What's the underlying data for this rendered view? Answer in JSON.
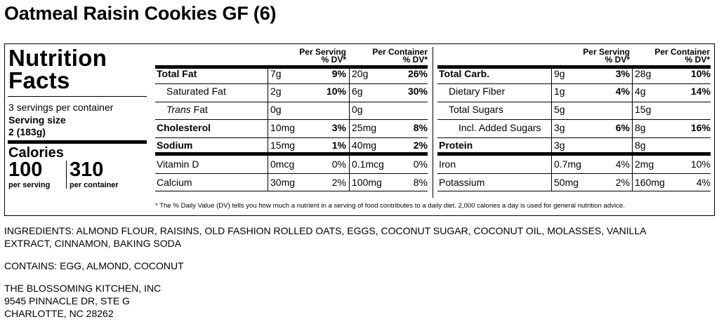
{
  "title": "Oatmeal Raisin Cookies GF (6)",
  "label": {
    "heading": "Nutrition Facts",
    "servings_per_container": "3 servings per container",
    "serving_size_label": "Serving size",
    "serving_size_value": "2 (183g)",
    "calories_label": "Calories",
    "calories_per_serving": "100",
    "calories_per_container": "310",
    "per_serving_label": "per serving",
    "per_container_label": "per container",
    "col_per_serving": "Per Serving",
    "col_per_container": "Per Container",
    "col_dv": "% DV*",
    "left_rows": [
      {
        "name": "Total Fat",
        "bold": true,
        "indent": 0,
        "serving": "7g",
        "serving_dv": "9%",
        "container": "20g",
        "container_dv": "26%",
        "dv_bold": true
      },
      {
        "name": "Saturated Fat",
        "bold": false,
        "indent": 1,
        "serving": "2g",
        "serving_dv": "10%",
        "container": "6g",
        "container_dv": "30%",
        "dv_bold": true
      },
      {
        "name": "Trans",
        "suffix": " Fat",
        "italic": true,
        "bold": false,
        "indent": 1,
        "serving": "0g",
        "serving_dv": "",
        "container": "0g",
        "container_dv": "",
        "dv_bold": true
      },
      {
        "name": "Cholesterol",
        "bold": true,
        "indent": 0,
        "serving": "10mg",
        "serving_dv": "3%",
        "container": "25mg",
        "container_dv": "8%",
        "dv_bold": true
      },
      {
        "name": "Sodium",
        "bold": true,
        "indent": 0,
        "serving": "15mg",
        "serving_dv": "1%",
        "container": "40mg",
        "container_dv": "2%",
        "dv_bold": true
      },
      {
        "name": "Vitamin D",
        "bold": false,
        "indent": 0,
        "serving": "0mcg",
        "serving_dv": "0%",
        "container": "0.1mcg",
        "container_dv": "0%",
        "dv_bold": false
      },
      {
        "name": "Calcium",
        "bold": false,
        "indent": 0,
        "serving": "30mg",
        "serving_dv": "2%",
        "container": "100mg",
        "container_dv": "8%",
        "dv_bold": false
      }
    ],
    "right_rows": [
      {
        "name": "Total Carb.",
        "bold": true,
        "indent": 0,
        "serving": "9g",
        "serving_dv": "3%",
        "container": "28g",
        "container_dv": "10%",
        "dv_bold": true
      },
      {
        "name": "Dietary Fiber",
        "bold": false,
        "indent": 1,
        "serving": "1g",
        "serving_dv": "4%",
        "container": "4g",
        "container_dv": "14%",
        "dv_bold": true
      },
      {
        "name": "Total Sugars",
        "bold": false,
        "indent": 1,
        "serving": "5g",
        "serving_dv": "",
        "container": "15g",
        "container_dv": "",
        "dv_bold": true
      },
      {
        "name": "Incl. Added Sugars",
        "bold": false,
        "indent": 2,
        "serving": "3g",
        "serving_dv": "6%",
        "container": "8g",
        "container_dv": "16%",
        "dv_bold": true
      },
      {
        "name": "Protein",
        "bold": true,
        "indent": 0,
        "serving": "3g",
        "serving_dv": "",
        "container": "8g",
        "container_dv": "",
        "dv_bold": true
      },
      {
        "name": "Iron",
        "bold": false,
        "indent": 0,
        "serving": "0.7mg",
        "serving_dv": "4%",
        "container": "2mg",
        "container_dv": "10%",
        "dv_bold": false
      },
      {
        "name": "Potassium",
        "bold": false,
        "indent": 0,
        "serving": "50mg",
        "serving_dv": "2%",
        "container": "160mg",
        "container_dv": "4%",
        "dv_bold": false
      }
    ],
    "footnote": "* The % Daily Value (DV) tells you how much a nutrient in a serving of food contributes to a daily diet. 2,000 calories a day is used for general nutrition advice."
  },
  "ingredients": {
    "line1": "INGREDIENTS: ALMOND FLOUR, RAISINS, OLD FASHION ROLLED OATS, EGGS, COCONUT SUGAR, COCONUT OIL, MOLASSES, VANILLA",
    "line2": "EXTRACT, CINNAMON, BAKING SODA"
  },
  "contains": "CONTAINS: EGG, ALMOND, COCONUT",
  "manufacturer": {
    "name": "THE BLOSSOMING KITCHEN, INC",
    "street": "9545 PINNACLE DR, STE G",
    "city": "CHARLOTTE, NC 28262"
  }
}
